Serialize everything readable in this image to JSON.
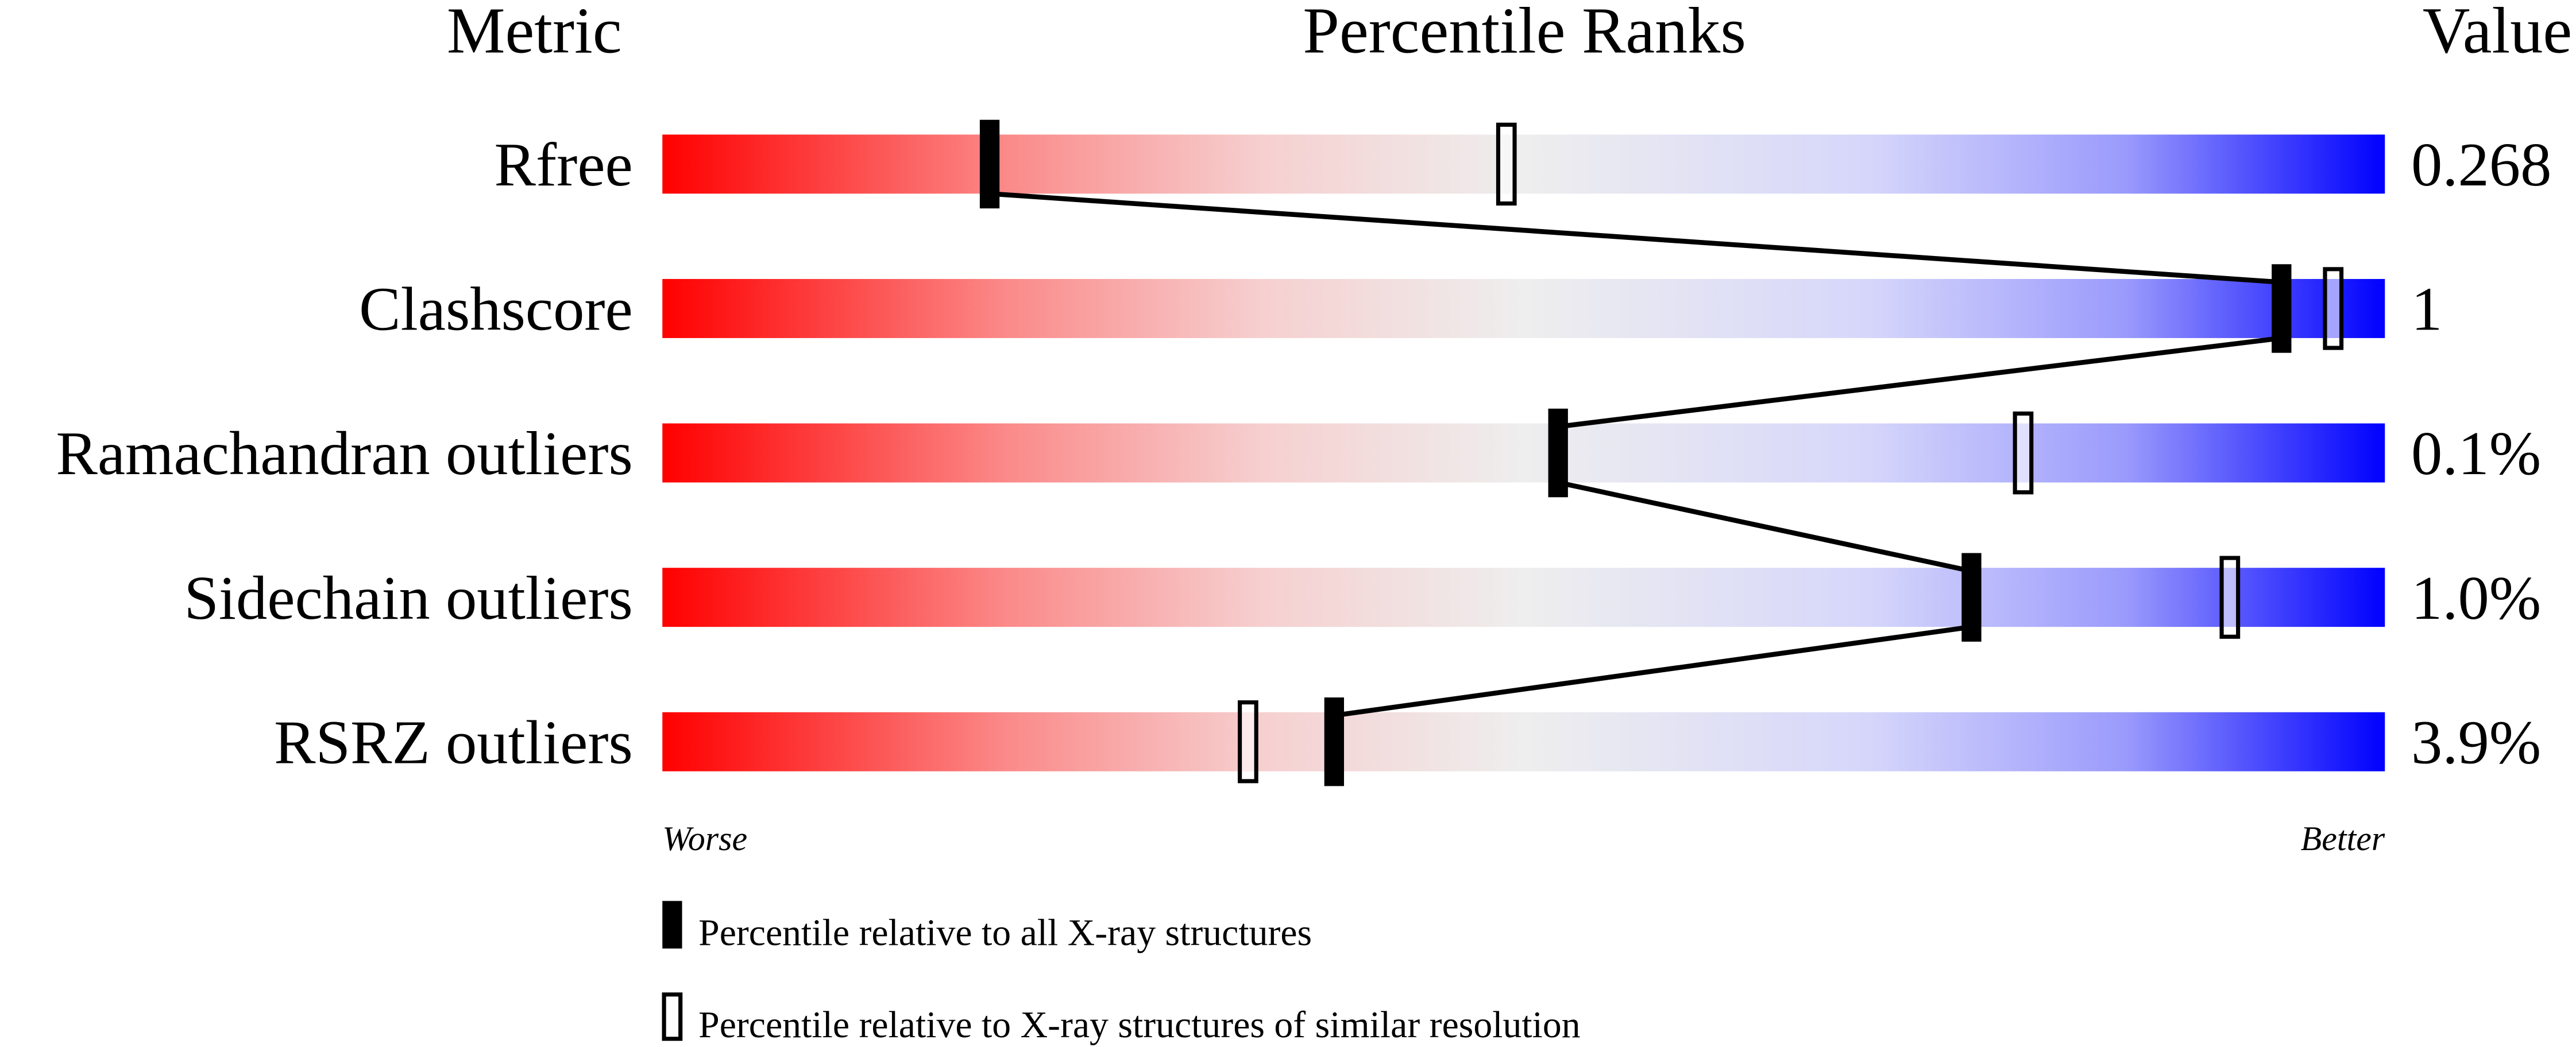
{
  "chart_data": {
    "type": "bar",
    "headers": {
      "metric": "Metric",
      "ranks": "Percentile Ranks",
      "value": "Value"
    },
    "xlim": [
      0,
      100
    ],
    "axis_left_label": "Worse",
    "axis_right_label": "Better",
    "gradient_colors": [
      "#ff0000",
      "#eeeeee",
      "#0000ff"
    ],
    "metrics": [
      {
        "name": "Rfree",
        "value": "0.268",
        "percentile_all": 19,
        "percentile_similar": 49
      },
      {
        "name": "Clashscore",
        "value": "1",
        "percentile_all": 94,
        "percentile_similar": 97
      },
      {
        "name": "Ramachandran outliers",
        "value": "0.1%",
        "percentile_all": 52,
        "percentile_similar": 79
      },
      {
        "name": "Sidechain outliers",
        "value": "1.0%",
        "percentile_all": 76,
        "percentile_similar": 91
      },
      {
        "name": "RSRZ outliers",
        "value": "3.9%",
        "percentile_all": 39,
        "percentile_similar": 34
      }
    ],
    "legend": [
      {
        "marker": "filled",
        "label": "Percentile relative to all X-ray structures"
      },
      {
        "marker": "open",
        "label": "Percentile relative to X-ray structures of similar resolution"
      }
    ]
  }
}
